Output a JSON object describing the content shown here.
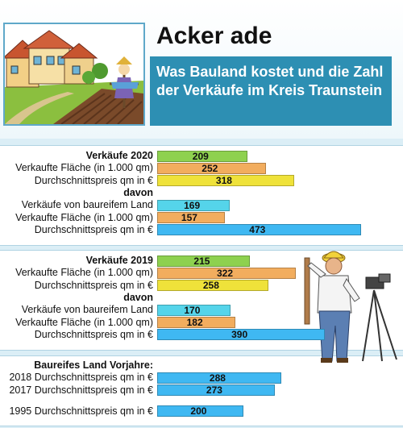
{
  "header": {
    "title": "Acker ade",
    "subtitle": "Was Bauland kostet und die Zahl der Verkäufe im Kreis Traunstein"
  },
  "colors": {
    "green": "#8ed14f",
    "orange": "#f2ad5e",
    "yellow": "#efe23a",
    "cyan": "#55d4ea",
    "blue": "#3fb8f2",
    "accent": "#2d8fb3"
  },
  "sections": [
    {
      "rows": [
        {
          "label": "Verkäufe 2020",
          "bold": true,
          "value": 209,
          "color": "green"
        },
        {
          "label": "Verkaufte Fläche (in 1.000 qm)",
          "value": 252,
          "color": "orange"
        },
        {
          "label": "Durchschnittspreis qm in €",
          "value": 318,
          "color": "yellow"
        },
        {
          "label": "davon",
          "bold": true
        },
        {
          "label": "Verkäufe von baureifem Land",
          "value": 169,
          "color": "cyan"
        },
        {
          "label": "Verkaufte Fläche (in 1.000 qm)",
          "value": 157,
          "color": "orange"
        },
        {
          "label": "Durchschnittspreis qm in €",
          "value": 473,
          "color": "blue"
        }
      ]
    },
    {
      "rows": [
        {
          "label": "Verkäufe 2019",
          "bold": true,
          "value": 215,
          "color": "green"
        },
        {
          "label": "Verkaufte Fläche (in 1.000 qm)",
          "value": 322,
          "color": "orange"
        },
        {
          "label": "Durchschnittspreis qm in €",
          "value": 258,
          "color": "yellow"
        },
        {
          "label": "davon",
          "bold": true
        },
        {
          "label": "Verkäufe von baureifem Land",
          "value": 170,
          "color": "cyan"
        },
        {
          "label": "Verkaufte Fläche (in 1.000 qm)",
          "value": 182,
          "color": "orange"
        },
        {
          "label": "Durchschnittspreis qm in €",
          "value": 390,
          "color": "blue"
        }
      ]
    },
    {
      "rows": [
        {
          "label": "Baureifes Land Vorjahre:",
          "bold": true
        },
        {
          "label": "2018 Durchschnittspreis qm in €",
          "value": 288,
          "color": "blue"
        },
        {
          "label": "2017 Durchschnittspreis qm in €",
          "value": 273,
          "color": "blue"
        },
        {
          "label": "",
          "gap": true
        },
        {
          "label": "1995 Durchschnittspreis qm in €",
          "value": 200,
          "color": "blue"
        }
      ]
    }
  ],
  "chart_data": {
    "type": "bar",
    "orientation": "horizontal",
    "categories": [
      "Verkäufe 2020",
      "Verkaufte Fläche (in 1.000 qm)",
      "Durchschnittspreis qm in €",
      "Verkäufe von baureifem Land",
      "Verkaufte Fläche (in 1.000 qm)",
      "Durchschnittspreis qm in €",
      "Verkäufe 2019",
      "Verkaufte Fläche (in 1.000 qm)",
      "Durchschnittspreis qm in €",
      "Verkäufe von baureifem Land",
      "Verkaufte Fläche (in 1.000 qm)",
      "Durchschnittspreis qm in €",
      "2018 Durchschnittspreis qm in €",
      "2017 Durchschnittspreis qm in €",
      "1995 Durchschnittspreis qm in €"
    ],
    "values": [
      209,
      252,
      318,
      169,
      157,
      473,
      215,
      322,
      258,
      170,
      182,
      390,
      288,
      273,
      200
    ],
    "title": "Acker ade",
    "subtitle": "Was Bauland kostet und die Zahl der Verkäufe im Kreis Traunstein",
    "grid": false
  }
}
